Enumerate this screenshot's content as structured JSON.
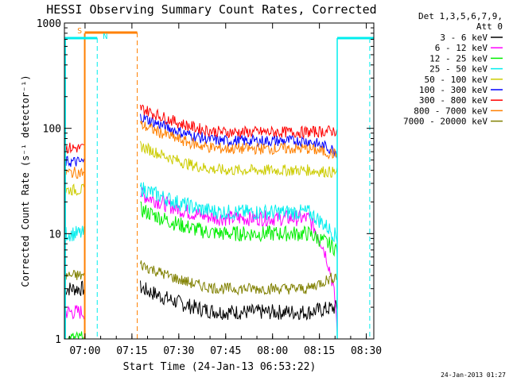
{
  "chart_data": {
    "type": "line",
    "title": "HESSI Observing Summary Count Rates, Corrected",
    "xlabel": "Start Time (24-Jan-13 06:53:22)",
    "ylabel": "Corrected Count Rate (s⁻¹ detector⁻¹)",
    "ylog": true,
    "ylim": [
      1,
      1000
    ],
    "xlim_minutes_from_0653": [
      0,
      99
    ],
    "x_ticks": [
      {
        "label": "07:00",
        "min": 6.6
      },
      {
        "label": "07:15",
        "min": 21.6
      },
      {
        "label": "07:30",
        "min": 36.6
      },
      {
        "label": "07:45",
        "min": 51.6
      },
      {
        "label": "08:00",
        "min": 66.6
      },
      {
        "label": "08:15",
        "min": 81.6
      },
      {
        "label": "08:30",
        "min": 96.6
      }
    ],
    "y_ticks": [
      {
        "label": "1",
        "value": 1
      },
      {
        "label": "10",
        "value": 10
      },
      {
        "label": "100",
        "value": 100
      },
      {
        "label": "1000",
        "value": 1000
      }
    ],
    "legend_header": [
      "Det 1,3,5,6,7,9,",
      "Att 0"
    ],
    "series": [
      {
        "name": "3 - 6 keV",
        "color": "#000000",
        "start": 3,
        "mid": 1.8,
        "end": 2.0
      },
      {
        "name": "6 - 12 keV",
        "color": "#ff00ff",
        "start": 1.8,
        "mid": 14,
        "end": 1.0
      },
      {
        "name": "12 - 25 keV",
        "color": "#00ee00",
        "start": 1.0,
        "mid": 10,
        "end": 7
      },
      {
        "name": "25 - 50 keV",
        "color": "#00eeee",
        "start": 10,
        "mid": 16,
        "end": 9
      },
      {
        "name": "50 - 100 keV",
        "color": "#cccc00",
        "start": 26,
        "mid": 40,
        "end": 38
      },
      {
        "name": "100 - 300 keV",
        "color": "#0000ff",
        "start": 48,
        "mid": 76,
        "end": 60
      },
      {
        "name": "300 - 800 keV",
        "color": "#ff0000",
        "start": 65,
        "mid": 92,
        "end": 95
      },
      {
        "name": "800 - 7000 keV",
        "color": "#ff8000",
        "start": 38,
        "mid": 64,
        "end": 56
      },
      {
        "name": "7000 - 20000 keV",
        "color": "#808000",
        "start": 4,
        "mid": 3,
        "end": 4
      }
    ],
    "annotations": [
      {
        "text": "S",
        "color": "#ff8000"
      },
      {
        "text": "N",
        "color": "#00eeee"
      }
    ],
    "footer_date": "24-Jan-2013 01:27"
  }
}
